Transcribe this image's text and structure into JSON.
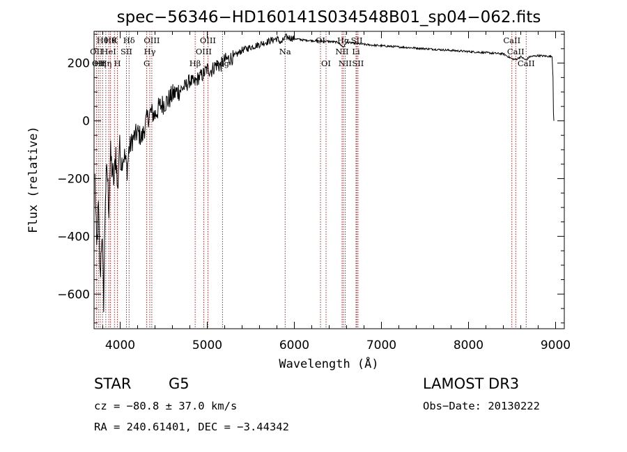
{
  "chart_data": {
    "type": "line",
    "title": "spec−56346−HD160141S034548B01_sp04−062.fits",
    "xlabel": "Wavelength (Å)",
    "ylabel": "Flux (relative)",
    "xlim": [
      3700,
      9100
    ],
    "ylim": [
      -720,
      310
    ],
    "x_ticks": [
      4000,
      5000,
      6000,
      7000,
      8000,
      9000
    ],
    "y_ticks": [
      -600,
      -400,
      -200,
      0,
      200
    ],
    "y_tick_labels": [
      "−600",
      "−400",
      "−200",
      "0",
      "200"
    ],
    "series": [
      {
        "name": "spectrum",
        "x": [
          3710,
          3730,
          3750,
          3770,
          3790,
          3810,
          3830,
          3850,
          3870,
          3890,
          3910,
          3930,
          3950,
          3970,
          3990,
          4010,
          4030,
          4050,
          4080,
          4100,
          4150,
          4200,
          4250,
          4300,
          4350,
          4400,
          4450,
          4500,
          4550,
          4600,
          4650,
          4700,
          4750,
          4800,
          4850,
          4900,
          4950,
          5000,
          5050,
          5100,
          5150,
          5200,
          5300,
          5400,
          5500,
          5600,
          5700,
          5800,
          5850,
          5900,
          6000,
          6100,
          6200,
          6300,
          6400,
          6500,
          6563,
          6600,
          6700,
          6800,
          6900,
          7000,
          7200,
          7400,
          7600,
          7800,
          8000,
          8200,
          8400,
          8498,
          8542,
          8600,
          8662,
          8700,
          8800,
          8900,
          8960,
          8970,
          8975,
          8980
        ],
        "y": [
          -200,
          -450,
          -300,
          -550,
          -380,
          -620,
          -250,
          -170,
          -300,
          -120,
          -180,
          -210,
          -100,
          -250,
          -80,
          -150,
          -130,
          -120,
          -170,
          -100,
          -60,
          -40,
          -60,
          0,
          30,
          20,
          50,
          60,
          70,
          90,
          100,
          110,
          120,
          140,
          130,
          150,
          160,
          180,
          175,
          195,
          190,
          210,
          220,
          245,
          255,
          265,
          275,
          285,
          270,
          290,
          285,
          280,
          278,
          276,
          275,
          272,
          255,
          272,
          268,
          265,
          262,
          260,
          256,
          252,
          248,
          244,
          240,
          236,
          232,
          215,
          212,
          222,
          210,
          222,
          226,
          224,
          222,
          150,
          30,
          0
        ]
      }
    ],
    "spectral_lines": [
      {
        "x": 3727,
        "label": "OII",
        "row": 2
      },
      {
        "x": 3750,
        "label": "OII",
        "row": 3
      },
      {
        "x": 3771,
        "label": "Hη",
        "row": 3
      },
      {
        "x": 3798,
        "label": "Hθ",
        "row": 1
      },
      {
        "x": 3835,
        "label": "Hη",
        "row": 3
      },
      {
        "x": 3869,
        "label": "HeI",
        "row": 2
      },
      {
        "x": 3889,
        "label": "Hθ",
        "row": 1
      },
      {
        "x": 3934,
        "label": "K",
        "row": 1
      },
      {
        "x": 3968,
        "label": "H",
        "row": 3
      },
      {
        "x": 4072,
        "label": "SII",
        "row": 2
      },
      {
        "x": 4102,
        "label": "Hδ",
        "row": 1
      },
      {
        "x": 4305,
        "label": "G",
        "row": 3
      },
      {
        "x": 4340,
        "label": "Hγ",
        "row": 2
      },
      {
        "x": 4363,
        "label": "OIII",
        "row": 1
      },
      {
        "x": 4861,
        "label": "Hβ",
        "row": 3
      },
      {
        "x": 4959,
        "label": "OIII",
        "row": 2
      },
      {
        "x": 5007,
        "label": "OIII",
        "row": 1
      },
      {
        "x": 5175,
        "label": "Mg",
        "row": 3
      },
      {
        "x": 5894,
        "label": "Na",
        "row": 2
      },
      {
        "x": 6300,
        "label": "OI",
        "row": 1
      },
      {
        "x": 6364,
        "label": "OI",
        "row": 3
      },
      {
        "x": 6548,
        "label": "NII",
        "row": 2
      },
      {
        "x": 6563,
        "label": "Hα",
        "row": 1
      },
      {
        "x": 6584,
        "label": "NII",
        "row": 3
      },
      {
        "x": 6708,
        "label": "Li",
        "row": 2
      },
      {
        "x": 6717,
        "label": "SII",
        "row": 1
      },
      {
        "x": 6731,
        "label": "SII",
        "row": 3
      },
      {
        "x": 8498,
        "label": "CaII",
        "row": 1
      },
      {
        "x": 8542,
        "label": "CaII",
        "row": 2
      },
      {
        "x": 8662,
        "label": "CaII",
        "row": 3
      }
    ]
  },
  "info": {
    "object_class": "STAR",
    "subclass": "G5",
    "survey": "LAMOST DR3",
    "redshift": "cz = −80.8 ± 37.0 km/s",
    "obs_date": "Obs−Date: 20130222",
    "coords": "RA = 240.61401, DEC =  −3.44342"
  }
}
